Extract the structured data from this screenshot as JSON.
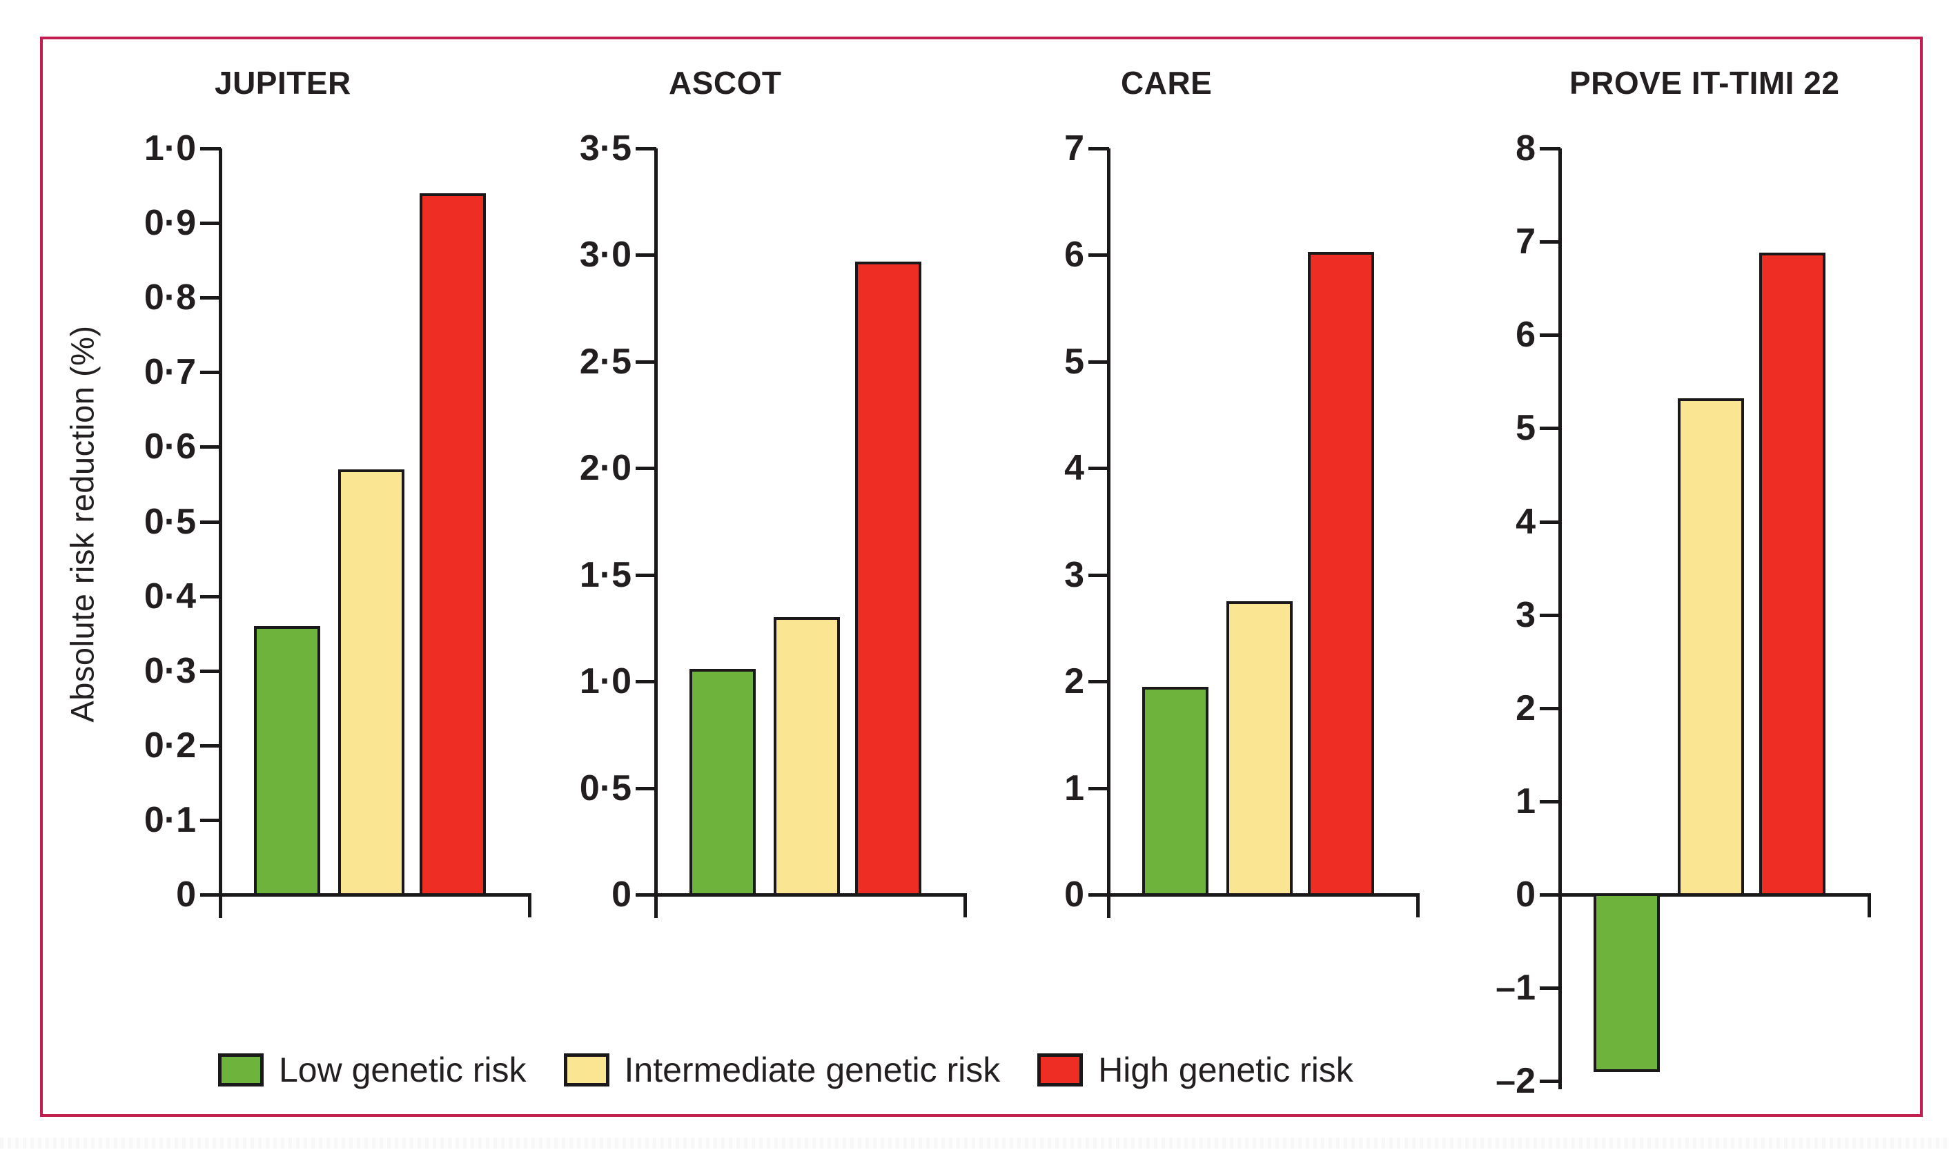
{
  "figure": {
    "ylabel": "Absolute risk reduction (%)",
    "frame_color": "#c31e50",
    "axis_color": "#1a1818",
    "text_color": "#231f20"
  },
  "legend": {
    "position": "bottom-left",
    "items": [
      {
        "label": "Low genetic risk",
        "color": "#6eb33c"
      },
      {
        "label": "Intermediate genetic risk",
        "color": "#fae592"
      },
      {
        "label": "High genetic risk",
        "color": "#ee2d24"
      }
    ]
  },
  "chart_data": [
    {
      "type": "bar",
      "title": "JUPITER",
      "ylabel": "Absolute risk reduction (%)",
      "categories": [
        "Low genetic risk",
        "Intermediate genetic risk",
        "High genetic risk"
      ],
      "values": [
        0.36,
        0.57,
        0.94
      ],
      "ylim": [
        0,
        1.0
      ],
      "grid": false,
      "yticks": [
        1.0,
        0.9,
        0.8,
        0.7,
        0.6,
        0.5,
        0.4,
        0.3,
        0.2,
        0.1,
        0
      ],
      "ytick_labels": [
        "1·0",
        "0·9",
        "0·8",
        "0·7",
        "0·6",
        "0·5",
        "0·4",
        "0·3",
        "0·2",
        "0·1",
        "0"
      ]
    },
    {
      "type": "bar",
      "title": "ASCOT",
      "categories": [
        "Low genetic risk",
        "Intermediate genetic risk",
        "High genetic risk"
      ],
      "values": [
        1.06,
        1.3,
        2.97
      ],
      "ylim": [
        0,
        3.5
      ],
      "grid": false,
      "yticks": [
        3.5,
        3.0,
        2.5,
        2.0,
        1.5,
        1.0,
        0.5,
        0
      ],
      "ytick_labels": [
        "3·5",
        "3·0",
        "2·5",
        "2·0",
        "1·5",
        "1·0",
        "0·5",
        "0"
      ]
    },
    {
      "type": "bar",
      "title": "CARE",
      "categories": [
        "Low genetic risk",
        "Intermediate genetic risk",
        "High genetic risk"
      ],
      "values": [
        1.95,
        2.75,
        6.03
      ],
      "ylim": [
        0,
        7
      ],
      "grid": false,
      "yticks": [
        7,
        6,
        5,
        4,
        3,
        2,
        1,
        0
      ],
      "ytick_labels": [
        "7",
        "6",
        "5",
        "4",
        "3",
        "2",
        "1",
        "0"
      ]
    },
    {
      "type": "bar",
      "title": "PROVE IT-TIMI 22",
      "categories": [
        "Low genetic risk",
        "Intermediate genetic risk",
        "High genetic risk"
      ],
      "values": [
        -1.9,
        5.32,
        6.88
      ],
      "ylim": [
        -2,
        8
      ],
      "grid": false,
      "yticks": [
        8,
        7,
        6,
        5,
        4,
        3,
        2,
        1,
        0,
        -1,
        -2
      ],
      "ytick_labels": [
        "8",
        "7",
        "6",
        "5",
        "4",
        "3",
        "2",
        "1",
        "0",
        "–1",
        "–2"
      ]
    }
  ]
}
